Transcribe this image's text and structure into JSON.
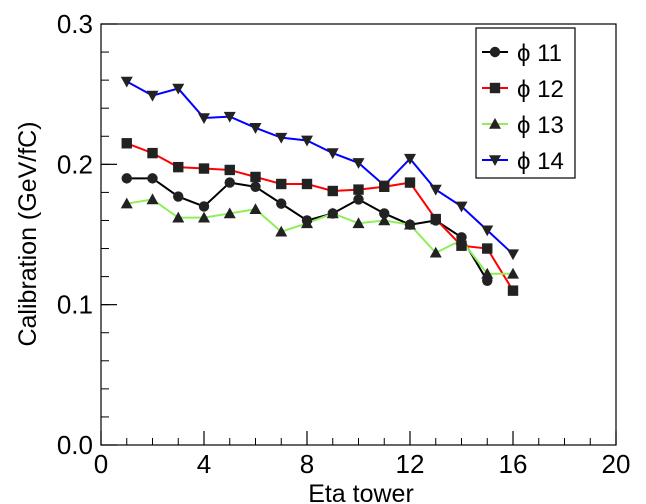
{
  "chart_data": {
    "type": "line",
    "title": "",
    "xlabel": "Eta tower",
    "ylabel": "Calibration  (GeV/fC)",
    "xlim": [
      0,
      20
    ],
    "ylim": [
      0.0,
      0.3
    ],
    "xticks": [
      0,
      4,
      8,
      12,
      16,
      20
    ],
    "xtick_labels": [
      "0",
      "4",
      "8",
      "12",
      "16",
      "20"
    ],
    "yticks": [
      0.0,
      0.1,
      0.2,
      0.3
    ],
    "ytick_labels": [
      "0.0",
      "0.1",
      "0.2",
      "0.3"
    ],
    "x_minor_step": 1,
    "y_minor_step": 0.02,
    "grid": false,
    "legend_position": "top-right",
    "series": [
      {
        "name": "ϕ 11",
        "marker": "circle",
        "line_color": "#000000",
        "marker_color": "#222222",
        "x": [
          1,
          2,
          3,
          4,
          5,
          6,
          7,
          8,
          9,
          10,
          11,
          12,
          13,
          14,
          15
        ],
        "values": [
          0.19,
          0.19,
          0.177,
          0.17,
          0.187,
          0.184,
          0.172,
          0.16,
          0.165,
          0.175,
          0.165,
          0.157,
          0.16,
          0.148,
          0.117
        ]
      },
      {
        "name": "ϕ 12",
        "marker": "square",
        "line_color": "#ff0000",
        "marker_color": "#222222",
        "x": [
          1,
          2,
          3,
          4,
          5,
          6,
          7,
          8,
          9,
          10,
          11,
          12,
          13,
          14,
          15,
          16
        ],
        "values": [
          0.215,
          0.208,
          0.198,
          0.197,
          0.196,
          0.191,
          0.186,
          0.186,
          0.181,
          0.182,
          0.184,
          0.187,
          0.161,
          0.142,
          0.14,
          0.11
        ]
      },
      {
        "name": "ϕ 13",
        "marker": "triangle-up",
        "line_color": "#90ee5a",
        "marker_color": "#222222",
        "x": [
          1,
          2,
          3,
          4,
          5,
          6,
          7,
          8,
          9,
          10,
          11,
          12,
          13,
          14,
          15,
          16
        ],
        "values": [
          0.172,
          0.175,
          0.162,
          0.162,
          0.165,
          0.168,
          0.152,
          0.158,
          0.165,
          0.158,
          0.16,
          0.157,
          0.137,
          0.146,
          0.122,
          0.122
        ]
      },
      {
        "name": "ϕ 14",
        "marker": "triangle-down",
        "line_color": "#0000ff",
        "marker_color": "#222222",
        "x": [
          1,
          2,
          3,
          4,
          5,
          6,
          7,
          8,
          9,
          10,
          11,
          12,
          13,
          14,
          15,
          16
        ],
        "values": [
          0.259,
          0.249,
          0.254,
          0.233,
          0.234,
          0.226,
          0.219,
          0.217,
          0.208,
          0.201,
          0.185,
          0.204,
          0.182,
          0.17,
          0.153,
          0.136
        ]
      }
    ]
  }
}
